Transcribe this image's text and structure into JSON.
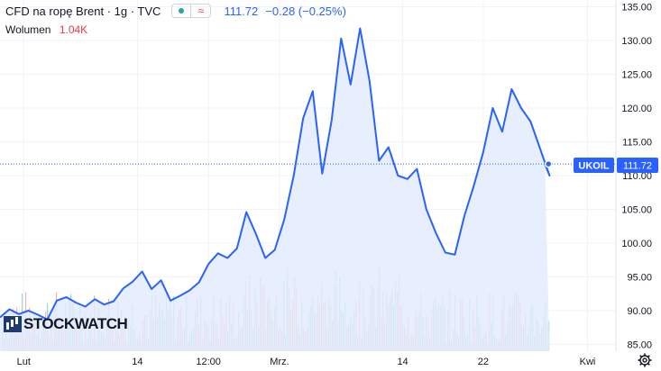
{
  "header": {
    "symbol": "CFD na ropę Brent · 1g · TVC",
    "price": "111.72",
    "change": "−0.28 (−0.25%)",
    "status_icon": "market-open-dot-icon",
    "approx_icon": "approx-icon"
  },
  "volume": {
    "label": "Wolumen",
    "value": "1.04K"
  },
  "logo": {
    "text": "STOCKWATCH"
  },
  "price_tag": {
    "symbol": "UKOIL",
    "value": "111.72"
  },
  "colors": {
    "line": "#2962ff",
    "fill": "#e3ebfd",
    "vol_up": "#26a69a",
    "vol_down": "#ef5350",
    "tag_bg": "#2962ff"
  },
  "chart_data": {
    "type": "area",
    "ylim": [
      84,
      136
    ],
    "yticks": [
      85,
      90,
      95,
      100,
      105,
      110,
      115,
      120,
      125,
      130,
      135
    ],
    "ytick_labels": [
      "85.00",
      "90.00",
      "95.00",
      "100.00",
      "105.00",
      "110.00",
      "115.00",
      "120.00",
      "125.00",
      "130.00",
      "135.00"
    ],
    "xlim": [
      0,
      65
    ],
    "xticks": [
      {
        "x": 2.5,
        "label": "Lut"
      },
      {
        "x": 14.5,
        "label": "14"
      },
      {
        "x": 22,
        "label": "12:00"
      },
      {
        "x": 29.5,
        "label": "Mrz."
      },
      {
        "x": 42.5,
        "label": "14"
      },
      {
        "x": 51,
        "label": "22"
      },
      {
        "x": 62,
        "label": "Kwi"
      }
    ],
    "last_price": 111.72,
    "x": [
      0,
      1,
      2,
      3,
      4,
      5,
      6,
      7,
      8,
      9,
      10,
      11,
      12,
      13,
      14,
      15,
      16,
      17,
      18,
      19,
      20,
      21,
      22,
      23,
      24,
      25,
      26,
      27,
      28,
      29,
      30,
      31,
      32,
      33,
      34,
      35,
      36,
      37,
      38,
      39,
      40,
      41,
      42,
      43,
      44,
      45,
      46,
      47,
      48,
      49,
      50,
      51,
      52,
      53,
      54,
      55,
      56,
      57,
      58,
      57.5
    ],
    "values": [
      89.0,
      90.2,
      89.5,
      90.0,
      89.4,
      88.7,
      91.5,
      92.0,
      91.2,
      90.6,
      91.7,
      90.9,
      91.4,
      93.3,
      94.3,
      95.8,
      93.2,
      94.5,
      91.5,
      92.2,
      93.0,
      94.2,
      96.9,
      98.5,
      97.8,
      99.2,
      104.6,
      101.4,
      97.8,
      99.0,
      103.5,
      110.0,
      118.5,
      122.5,
      110.3,
      118.2,
      130.3,
      123.5,
      131.8,
      124.0,
      112.2,
      114.2,
      110.0,
      109.5,
      111.0,
      105.0,
      101.5,
      98.6,
      98.3,
      104.0,
      108.5,
      113.5,
      120.0,
      116.5,
      122.8,
      120.0,
      118.0,
      114.0,
      110.0,
      111.72
    ]
  }
}
